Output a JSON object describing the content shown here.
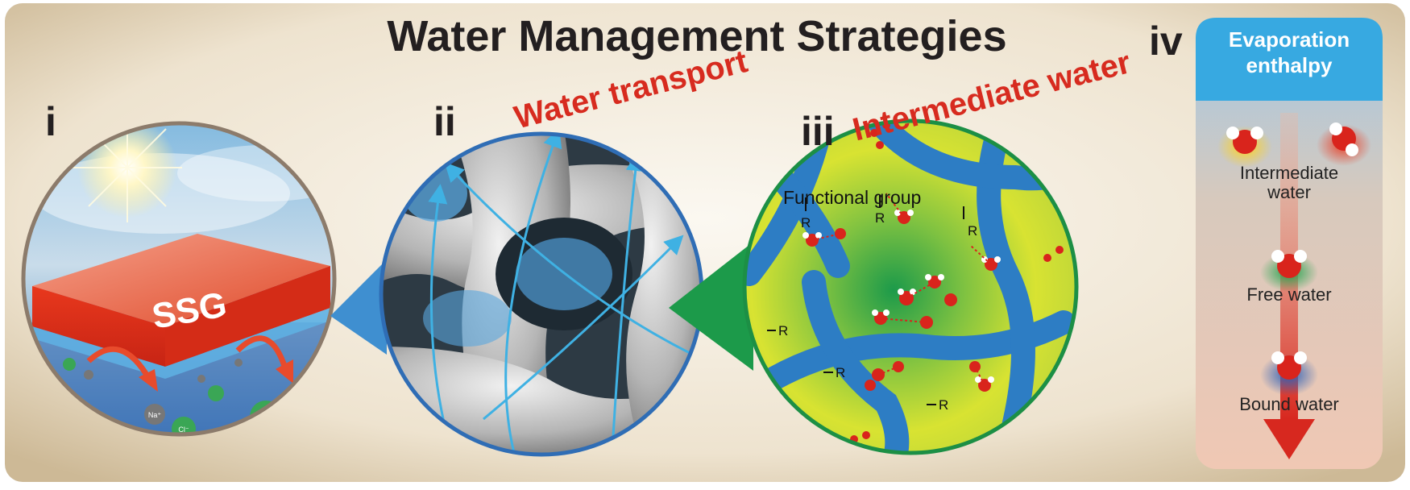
{
  "title": "Water Management Strategies",
  "panels": {
    "i": {
      "numeral": "i",
      "label": "SSG",
      "ions": {
        "na": "Na⁺",
        "cl": "Cl⁻"
      }
    },
    "ii": {
      "numeral": "ii",
      "label": "Water transport"
    },
    "iii": {
      "numeral": "iii",
      "label": "Intermediate water",
      "functional_group": "Functional group",
      "r_group": "R"
    },
    "iv": {
      "numeral": "iv",
      "header_line1": "Evaporation",
      "header_line2": "enthalpy",
      "items": {
        "intermediate_line1": "Intermediate",
        "intermediate_line2": "water",
        "free": "Free water",
        "bound": "Bound water"
      }
    }
  },
  "colors": {
    "frame": "#e8dcc6",
    "ssg": "#e2391c",
    "water_blue": "#2c86c7",
    "transport_label": "#d72b1f",
    "green_field": "#22a045",
    "arrow_red": "#d7281f",
    "panel_iv_header": "#37a9e1"
  }
}
